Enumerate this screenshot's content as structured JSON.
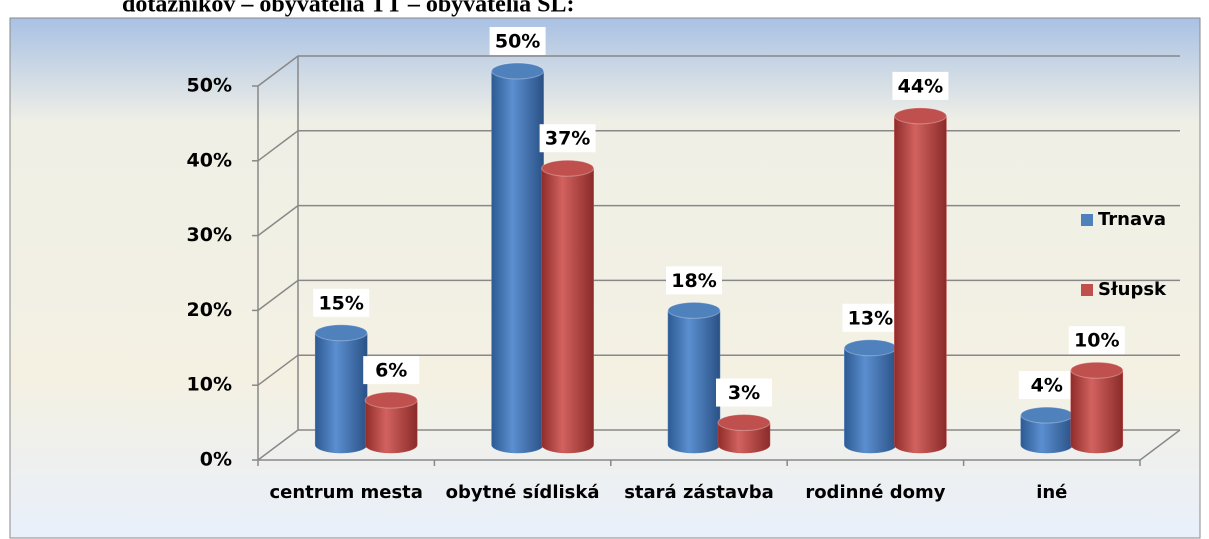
{
  "caption": "dotazníkov – obyvatelia TT – obyvatelia SL:",
  "chart_data": {
    "type": "bar3d",
    "categories": [
      "centrum mesta",
      "obytné sídliská",
      "stará zástavba",
      "rodinné domy",
      "iné"
    ],
    "series": [
      {
        "name": "Trnava",
        "color": "#4f81bd",
        "values": [
          15,
          50,
          18,
          13,
          4
        ],
        "value_labels": [
          "15%",
          "50%",
          "18%",
          "13%",
          "4%"
        ]
      },
      {
        "name": "Słupsk",
        "color": "#c0504d",
        "values": [
          6,
          37,
          3,
          44,
          10
        ],
        "value_labels": [
          "6%",
          "37%",
          "3%",
          "44%",
          "10%"
        ]
      }
    ],
    "ylim": [
      0,
      50
    ],
    "yticks": [
      {
        "value": 0,
        "label": "0%"
      },
      {
        "value": 10,
        "label": "10%"
      },
      {
        "value": 20,
        "label": "20%"
      },
      {
        "value": 30,
        "label": "30%"
      },
      {
        "value": 40,
        "label": "40%"
      },
      {
        "value": 50,
        "label": "50%"
      }
    ],
    "grid": true,
    "legend": "right"
  }
}
